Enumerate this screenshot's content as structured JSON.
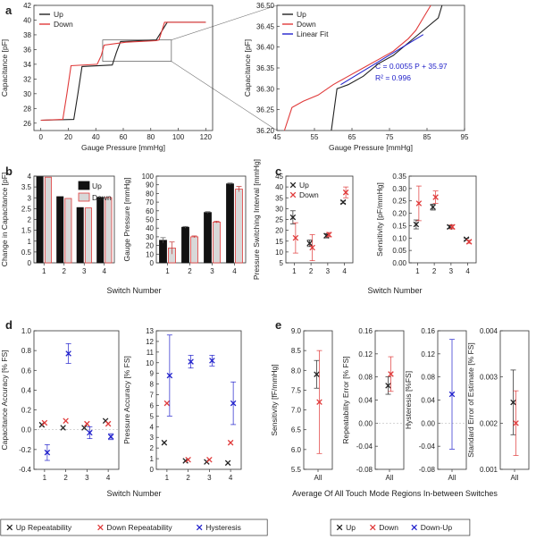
{
  "colors": {
    "up": "#222222",
    "down": "#e03a3a",
    "hyst": "#2222cc",
    "fit": "#2222cc",
    "barUp": "#111111",
    "barDown": "#d8d8d8",
    "barDownEdge": "#e03a3a"
  },
  "labels": {
    "a": "a",
    "b": "b",
    "c": "c",
    "d": "d",
    "e": "e",
    "switchNumber": "Switch Number",
    "averageAll": "Average Of All Touch Mode Regions In-between Switches",
    "fit_eq": "C = 0.0055 P + 35.97",
    "fit_r2": "R² = 0.996"
  },
  "legend_d": [
    {
      "marker": "×",
      "label": "Up Repeatability",
      "color": "#222222"
    },
    {
      "marker": "×",
      "label": "Down Repeatability",
      "color": "#e03a3a"
    },
    {
      "marker": "×",
      "label": "Hysteresis",
      "color": "#2222cc"
    }
  ],
  "legend_e": [
    {
      "marker": "×",
      "label": "Up",
      "color": "#222222"
    },
    {
      "marker": "×",
      "label": "Down",
      "color": "#e03a3a"
    },
    {
      "marker": "×",
      "label": "Down-Up",
      "color": "#2222cc"
    }
  ],
  "chart_data": [
    {
      "id": "a1",
      "type": "line",
      "xlabel": "Gauge Pressure [mmHg]",
      "ylabel": "Capacitance [pF]",
      "xlim": [
        -5,
        125
      ],
      "ylim": [
        25,
        42
      ],
      "xticks": [
        0,
        20,
        40,
        60,
        80,
        100,
        120
      ],
      "yticks": [
        26,
        28,
        30,
        32,
        34,
        36,
        38,
        40,
        42
      ],
      "legend": [
        "Up",
        "Down"
      ],
      "series": [
        {
          "name": "Up",
          "color": "#222222",
          "x": [
            0,
            24,
            27,
            30,
            52,
            55,
            58,
            84,
            88,
            92,
            120
          ],
          "y": [
            26.4,
            26.5,
            30,
            33.7,
            33.9,
            35.6,
            37.1,
            37.3,
            38.5,
            39.7,
            39.7
          ]
        },
        {
          "name": "Down",
          "color": "#e03a3a",
          "x": [
            120,
            90,
            86,
            84,
            62,
            46,
            44,
            41,
            22,
            19,
            16,
            0
          ],
          "y": [
            39.7,
            39.7,
            37.3,
            37.2,
            37.0,
            36.6,
            35.2,
            34.0,
            33.8,
            30,
            26.5,
            26.4
          ]
        }
      ]
    },
    {
      "id": "a2",
      "type": "line",
      "xlabel": "Gauge Pressure [mmHg]",
      "ylabel": "Capacitance [pF]",
      "xlim": [
        45,
        95
      ],
      "ylim": [
        36.2,
        36.5
      ],
      "xticks": [
        45,
        55,
        65,
        75,
        85,
        95
      ],
      "yticks": [
        36.2,
        36.25,
        36.3,
        36.35,
        36.4,
        36.45,
        36.5
      ],
      "ytick_labels": [
        "36.20",
        "36.25",
        "36.30",
        "36.35",
        "36.40",
        "36.45",
        "36.50"
      ],
      "legend": [
        "Up",
        "Down",
        "Linear Fit"
      ],
      "series": [
        {
          "name": "Up",
          "color": "#222222",
          "x": [
            59.5,
            61,
            64,
            68,
            72,
            76,
            80,
            84,
            88,
            89
          ],
          "y": [
            36.2,
            36.3,
            36.31,
            36.33,
            36.36,
            36.38,
            36.41,
            36.44,
            36.47,
            36.5
          ]
        },
        {
          "name": "Down",
          "color": "#e03a3a",
          "x": [
            47,
            49,
            52,
            56,
            60,
            64,
            68,
            72,
            76,
            80,
            82,
            84,
            86
          ],
          "y": [
            36.2,
            36.255,
            36.27,
            36.285,
            36.31,
            36.33,
            36.35,
            36.37,
            36.39,
            36.42,
            36.44,
            36.47,
            36.5
          ]
        },
        {
          "name": "Linear Fit",
          "color": "#2222cc",
          "x": [
            62,
            84
          ],
          "y": [
            36.31,
            36.43
          ]
        }
      ]
    },
    {
      "id": "b1",
      "type": "bar",
      "ylabel": "Change in Capacitance [pF]",
      "categories": [
        "1",
        "2",
        "3",
        "4"
      ],
      "ylim": [
        0,
        4
      ],
      "yticks": [
        0,
        0.5,
        1,
        1.5,
        2,
        2.5,
        3,
        3.5,
        4
      ],
      "yticks_labels": [
        "0",
        "0.5",
        "1",
        "1.5",
        "2",
        "2.5",
        "3",
        "3.5",
        "4"
      ],
      "legend": [
        "Up",
        "Down"
      ],
      "series": [
        {
          "name": "Up",
          "values": [
            3.97,
            3.05,
            2.55,
            3.02
          ]
        },
        {
          "name": "Down",
          "values": [
            3.95,
            2.97,
            2.53,
            3.01
          ]
        }
      ]
    },
    {
      "id": "b2",
      "type": "bar",
      "ylabel": "Gauge Pressure [mmHg]",
      "categories": [
        "1",
        "2",
        "3",
        "4"
      ],
      "ylim": [
        0,
        100
      ],
      "yticks": [
        0,
        10,
        20,
        30,
        40,
        50,
        60,
        70,
        80,
        90,
        100
      ],
      "series": [
        {
          "name": "Up",
          "values": [
            26,
            41,
            58,
            91
          ],
          "err": [
            3,
            1,
            1,
            1
          ]
        },
        {
          "name": "Down",
          "values": [
            17,
            30,
            47,
            85
          ],
          "err": [
            7,
            1,
            1,
            3
          ]
        }
      ]
    },
    {
      "id": "c1",
      "type": "scatter",
      "ylabel": "Pressure Switching Interval [mmHg]",
      "categories": [
        "1",
        "2",
        "3",
        "4"
      ],
      "ylim": [
        5,
        45
      ],
      "yticks": [
        5,
        10,
        15,
        20,
        25,
        30,
        35,
        40,
        45
      ],
      "legend": [
        "Up",
        "Down"
      ],
      "series": [
        {
          "name": "Up",
          "color": "#222222",
          "values": [
            26,
            14,
            17.5,
            33
          ],
          "err": [
            3,
            1.5,
            1,
            0.5
          ]
        },
        {
          "name": "Down",
          "color": "#e03a3a",
          "values": [
            16.5,
            12,
            18,
            37.5
          ],
          "err": [
            7,
            6,
            1,
            2.5
          ]
        }
      ]
    },
    {
      "id": "c2",
      "type": "scatter",
      "ylabel": "Sensitivity [pF/mmHg]",
      "categories": [
        "1",
        "2",
        "3",
        "4"
      ],
      "ylim": [
        0,
        0.35
      ],
      "yticks": [
        0,
        0.05,
        0.1,
        0.15,
        0.2,
        0.25,
        0.3,
        0.35
      ],
      "ytick_labels": [
        "0.00",
        "0.05",
        "0.10",
        "0.15",
        "0.20",
        "0.25",
        "0.30",
        "0.35"
      ],
      "series": [
        {
          "name": "Up",
          "color": "#222222",
          "values": [
            0.155,
            0.225,
            0.145,
            0.095
          ],
          "err": [
            0.018,
            0.012,
            0.006,
            0.004
          ]
        },
        {
          "name": "Down",
          "color": "#e03a3a",
          "values": [
            0.24,
            0.265,
            0.145,
            0.085
          ],
          "err": [
            0.07,
            0.025,
            0.008,
            0.006
          ]
        }
      ]
    },
    {
      "id": "d1",
      "type": "scatter",
      "ylabel": "Capacitance Accuracy [% FS]",
      "categories": [
        "1",
        "2",
        "3",
        "4"
      ],
      "ylim": [
        -0.4,
        1.0
      ],
      "yticks": [
        -0.4,
        -0.2,
        0,
        0.2,
        0.4,
        0.6,
        0.8,
        1.0
      ],
      "ytick_labels": [
        "-0.4",
        "-0.2",
        "0.0",
        "0.2",
        "0.4",
        "0.6",
        "0.8",
        "1.0"
      ],
      "series": [
        {
          "name": "Up Repeatability",
          "color": "#222222",
          "values": [
            0.05,
            0.02,
            0.02,
            0.09
          ],
          "err": [
            0,
            0,
            0,
            0
          ]
        },
        {
          "name": "Down Repeatability",
          "color": "#e03a3a",
          "values": [
            0.07,
            0.09,
            0.06,
            0.06
          ],
          "err": [
            0,
            0,
            0,
            0
          ]
        },
        {
          "name": "Hysteresis",
          "color": "#2222cc",
          "values": [
            -0.23,
            0.77,
            -0.03,
            -0.07
          ],
          "err": [
            0.08,
            0.1,
            0.06,
            0.03
          ]
        }
      ]
    },
    {
      "id": "d2",
      "type": "scatter",
      "ylabel": "Pressure Accuracy [% FS]",
      "categories": [
        "1",
        "2",
        "3",
        "4"
      ],
      "ylim": [
        0,
        13
      ],
      "yticks": [
        0,
        1,
        2,
        3,
        4,
        5,
        6,
        7,
        8,
        9,
        10,
        11,
        12,
        13
      ],
      "series": [
        {
          "name": "Up Repeatability",
          "color": "#222222",
          "values": [
            2.5,
            0.8,
            0.7,
            0.6
          ],
          "err": [
            0,
            0,
            0,
            0
          ]
        },
        {
          "name": "Down Repeatability",
          "color": "#e03a3a",
          "values": [
            6.2,
            0.9,
            0.9,
            2.5
          ],
          "err": [
            0,
            0,
            0,
            0
          ]
        },
        {
          "name": "Hysteresis",
          "color": "#2222cc",
          "values": [
            8.8,
            10.1,
            10.2,
            6.2
          ],
          "err": [
            3.8,
            0.6,
            0.5,
            2.0
          ]
        }
      ]
    },
    {
      "id": "e1",
      "type": "scatter",
      "ylabel": "Sensitivity [fF/mmHg]",
      "categories": [
        "All"
      ],
      "ylim": [
        5.5,
        9.0
      ],
      "yticks": [
        5.5,
        6.0,
        6.5,
        7.0,
        7.5,
        8.0,
        8.5,
        9.0
      ],
      "ytick_labels": [
        "5.5",
        "6.0",
        "6.5",
        "7.0",
        "7.5",
        "8.0",
        "8.5",
        "9.0"
      ],
      "series": [
        {
          "name": "Up",
          "color": "#222222",
          "values": [
            7.9
          ],
          "err": [
            0.35
          ]
        },
        {
          "name": "Down",
          "color": "#e03a3a",
          "values": [
            7.2
          ],
          "err": [
            1.3
          ]
        }
      ]
    },
    {
      "id": "e2",
      "type": "scatter",
      "ylabel": "Repeatability Error [% FS]",
      "categories": [
        "All"
      ],
      "ylim": [
        -0.08,
        0.16
      ],
      "yticks": [
        -0.08,
        -0.04,
        0,
        0.04,
        0.08,
        0.12,
        0.16
      ],
      "ytick_labels": [
        "-0.08",
        "-0.04",
        "0.00",
        "0.04",
        "0.08",
        "0.12",
        "0.16"
      ],
      "series": [
        {
          "name": "Up",
          "color": "#222222",
          "values": [
            0.065
          ],
          "err": [
            0.015
          ]
        },
        {
          "name": "Down",
          "color": "#e03a3a",
          "values": [
            0.085
          ],
          "err": [
            0.03
          ]
        }
      ]
    },
    {
      "id": "e3",
      "type": "scatter",
      "ylabel": "Hysteresis [%FS]",
      "categories": [
        "All"
      ],
      "ylim": [
        -0.08,
        0.16
      ],
      "yticks": [
        -0.08,
        -0.04,
        0,
        0.04,
        0.08,
        0.12,
        0.16
      ],
      "ytick_labels": [
        "-0.08",
        "-0.04",
        "0.00",
        "0.04",
        "0.08",
        "0.12",
        "0.16"
      ],
      "series": [
        {
          "name": "Down-Up",
          "color": "#2222cc",
          "values": [
            0.05
          ],
          "err": [
            0.095
          ]
        }
      ]
    },
    {
      "id": "e4",
      "type": "scatter",
      "ylabel": "Standard Error of Estimate [% FS]",
      "categories": [
        "All"
      ],
      "ylim": [
        0.001,
        0.004
      ],
      "yticks": [
        0.001,
        0.002,
        0.003,
        0.004
      ],
      "ytick_labels": [
        "0.001",
        "0.002",
        "0.003",
        "0.004"
      ],
      "series": [
        {
          "name": "Up",
          "color": "#222222",
          "values": [
            0.00245
          ],
          "err": [
            0.0007
          ]
        },
        {
          "name": "Down",
          "color": "#e03a3a",
          "values": [
            0.002
          ],
          "err": [
            0.0007
          ]
        }
      ]
    }
  ]
}
